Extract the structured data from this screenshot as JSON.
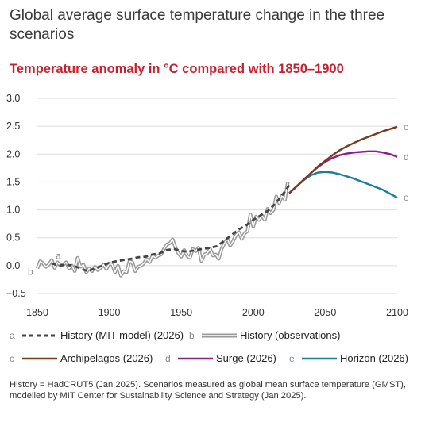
{
  "title": "Global average surface temperature change in the three scenarios",
  "subtitle": "Temperature anomaly in °C compared with 1850–1900",
  "note": "History = HadCRUT5 (Jan 2025). Scenarios measured as global mean surface temperature (GMST), modelled by MIT Center for Sustainability Science and Strategy (Jan 2025).",
  "colors": {
    "history_model": "#444444",
    "history_obs": "#9a9a9a",
    "archipelagos": "#7b3a1e",
    "surge": "#8a1e8a",
    "horizon": "#1a7f9a",
    "grid": "#dddddd",
    "letter": "#888888"
  },
  "legend": [
    {
      "letter": "a",
      "label": "History (MIT model) (2026)",
      "style": "dashed",
      "color_key": "history_model"
    },
    {
      "letter": "b",
      "label": "History (observations)",
      "style": "double",
      "color_key": "history_obs"
    },
    {
      "letter": "c",
      "label": "Archipelagos (2026)",
      "style": "solid",
      "color_key": "archipelagos"
    },
    {
      "letter": "d",
      "label": "Surge (2026)",
      "style": "solid",
      "color_key": "surge"
    },
    {
      "letter": "e",
      "label": "Horizon (2026)",
      "style": "solid",
      "color_key": "horizon"
    }
  ],
  "chart_data": {
    "type": "line",
    "xlim": [
      1850,
      2100
    ],
    "ylim": [
      -0.5,
      3.0
    ],
    "x_ticks": [
      1850,
      1900,
      1950,
      2000,
      2050,
      2100
    ],
    "x_tick_labels": [
      "1850",
      "1900",
      "1950",
      "2000",
      "2050",
      "2100"
    ],
    "y_ticks": [
      -0.5,
      0.0,
      0.5,
      1.0,
      1.5,
      2.0,
      2.5,
      3.0
    ],
    "y_tick_labels": [
      "−0.5",
      "0.0",
      "0.5",
      "1.0",
      "1.5",
      "2.0",
      "2.5",
      "3.0"
    ],
    "grid": "horizontal",
    "series": [
      {
        "name": "History (MIT model) (2026)",
        "letter": "a",
        "x": [
          1860,
          1865,
          1870,
          1875,
          1880,
          1885,
          1890,
          1895,
          1900,
          1905,
          1910,
          1915,
          1920,
          1925,
          1930,
          1935,
          1940,
          1945,
          1950,
          1955,
          1960,
          1965,
          1970,
          1975,
          1980,
          1985,
          1990,
          1995,
          2000,
          2005,
          2010,
          2015,
          2020,
          2025
        ],
        "y": [
          0.04,
          0.0,
          0.02,
          0.0,
          -0.05,
          -0.1,
          -0.05,
          0.0,
          0.05,
          0.08,
          0.1,
          0.12,
          0.15,
          0.16,
          0.2,
          0.22,
          0.28,
          0.3,
          0.26,
          0.25,
          0.28,
          0.3,
          0.32,
          0.35,
          0.45,
          0.55,
          0.65,
          0.72,
          0.82,
          0.9,
          0.98,
          1.1,
          1.26,
          1.44
        ]
      },
      {
        "name": "History (observations)",
        "letter": "b",
        "x": [
          1850,
          1852,
          1854,
          1856,
          1858,
          1860,
          1862,
          1864,
          1866,
          1868,
          1870,
          1872,
          1874,
          1876,
          1878,
          1880,
          1882,
          1884,
          1886,
          1888,
          1890,
          1892,
          1894,
          1896,
          1898,
          1900,
          1902,
          1904,
          1906,
          1908,
          1910,
          1912,
          1914,
          1916,
          1918,
          1920,
          1922,
          1924,
          1926,
          1928,
          1930,
          1932,
          1934,
          1936,
          1938,
          1940,
          1942,
          1944,
          1946,
          1948,
          1950,
          1952,
          1954,
          1956,
          1958,
          1960,
          1962,
          1964,
          1966,
          1968,
          1970,
          1972,
          1974,
          1976,
          1978,
          1980,
          1982,
          1984,
          1986,
          1988,
          1990,
          1992,
          1994,
          1996,
          1998,
          2000,
          2002,
          2004,
          2006,
          2008,
          2010,
          2012,
          2014,
          2016,
          2018,
          2020,
          2022,
          2024
        ],
        "y": [
          -0.05,
          0.08,
          0.04,
          -0.02,
          0.02,
          0.1,
          -0.04,
          0.06,
          0.0,
          0.02,
          0.06,
          -0.05,
          0.0,
          -0.1,
          0.14,
          -0.02,
          0.02,
          -0.12,
          -0.05,
          -0.1,
          -0.02,
          -0.08,
          -0.04,
          0.02,
          -0.06,
          0.04,
          0.02,
          -0.12,
          0.0,
          -0.18,
          -0.1,
          -0.12,
          0.08,
          0.06,
          -0.1,
          -0.02,
          0.0,
          0.04,
          0.12,
          0.06,
          0.18,
          0.14,
          0.18,
          0.2,
          0.3,
          0.38,
          0.4,
          0.47,
          0.32,
          0.22,
          0.16,
          0.28,
          0.18,
          0.14,
          0.3,
          0.26,
          0.32,
          0.08,
          0.2,
          0.22,
          0.3,
          0.18,
          0.2,
          0.12,
          0.3,
          0.4,
          0.48,
          0.36,
          0.44,
          0.55,
          0.6,
          0.48,
          0.58,
          0.62,
          0.92,
          0.7,
          0.88,
          0.82,
          0.9,
          0.82,
          1.02,
          0.94,
          1.0,
          1.24,
          1.12,
          1.26,
          1.18,
          1.5
        ]
      },
      {
        "name": "Archipelagos (2026)",
        "letter": "c",
        "x": [
          2025,
          2030,
          2035,
          2040,
          2045,
          2050,
          2055,
          2060,
          2065,
          2070,
          2075,
          2080,
          2085,
          2090,
          2095,
          2100
        ],
        "y": [
          1.3,
          1.42,
          1.54,
          1.66,
          1.78,
          1.88,
          1.98,
          2.07,
          2.14,
          2.2,
          2.26,
          2.31,
          2.36,
          2.41,
          2.45,
          2.49
        ]
      },
      {
        "name": "Surge (2026)",
        "letter": "d",
        "x": [
          2025,
          2030,
          2035,
          2040,
          2045,
          2050,
          2055,
          2060,
          2065,
          2070,
          2075,
          2080,
          2085,
          2090,
          2095,
          2100
        ],
        "y": [
          1.3,
          1.42,
          1.54,
          1.66,
          1.77,
          1.86,
          1.93,
          1.98,
          2.01,
          2.03,
          2.04,
          2.05,
          2.05,
          2.03,
          2.0,
          1.95
        ]
      },
      {
        "name": "Horizon (2026)",
        "letter": "e",
        "x": [
          2025,
          2030,
          2035,
          2040,
          2045,
          2050,
          2055,
          2060,
          2065,
          2070,
          2075,
          2080,
          2085,
          2090,
          2095,
          2100
        ],
        "y": [
          1.3,
          1.42,
          1.53,
          1.62,
          1.67,
          1.68,
          1.67,
          1.64,
          1.6,
          1.56,
          1.51,
          1.46,
          1.41,
          1.36,
          1.29,
          1.22
        ]
      }
    ]
  }
}
